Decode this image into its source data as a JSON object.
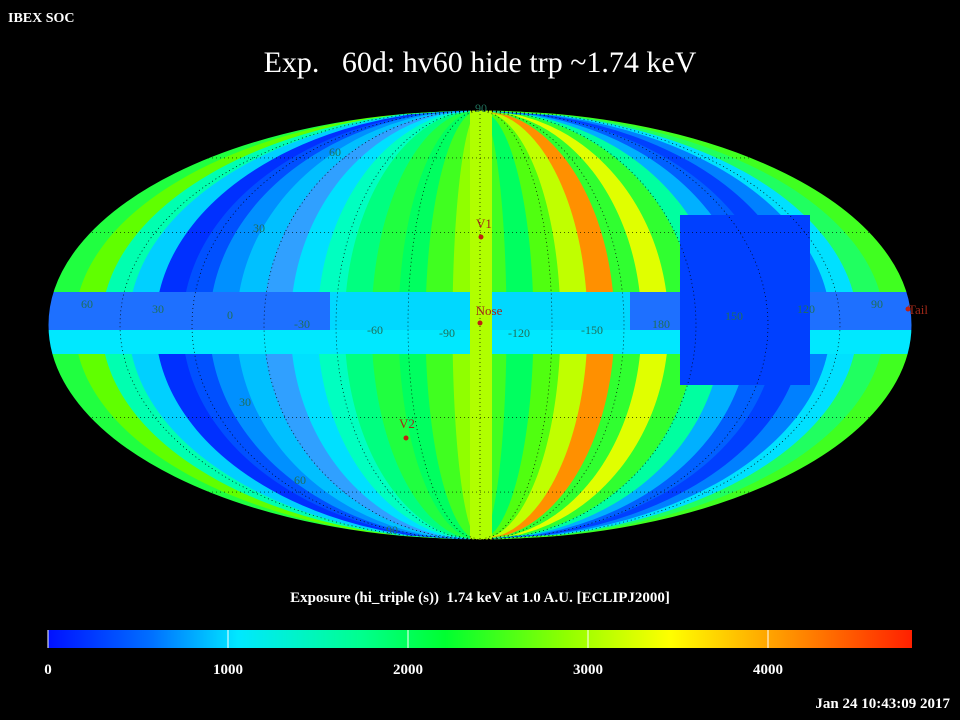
{
  "header": {
    "org": "IBEX SOC",
    "title": "Exp.   60d: hv60 hide trp ~1.74 keV"
  },
  "map": {
    "lat_labels": [
      "90",
      "60",
      "30",
      "30",
      "60",
      "90"
    ],
    "lon_labels": [
      "60",
      "30",
      "0",
      "-30",
      "-60",
      "-90",
      "-120",
      "-150",
      "180",
      "150",
      "120",
      "90"
    ],
    "markers": [
      {
        "label": "V1"
      },
      {
        "label": "Nose"
      },
      {
        "label": "Tail"
      },
      {
        "label": "V2"
      }
    ]
  },
  "colorbar": {
    "label": "Exposure (hi_triple (s))  1.74 keV at 1.0 A.U. [ECLIPJ2000]",
    "range": [
      0,
      4800
    ],
    "ticks": [
      0,
      1000,
      2000,
      3000,
      4000
    ]
  },
  "timestamp": "Jan 24 10:43:09 2017"
}
